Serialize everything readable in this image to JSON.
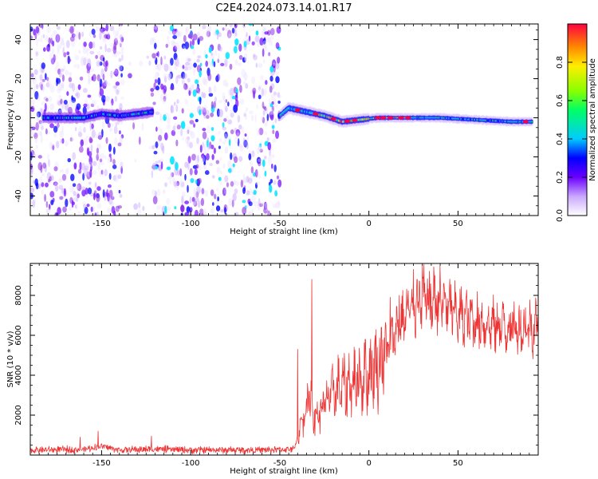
{
  "title": "C2E4.2024.073.14.01.R17",
  "colors": {
    "snr_line": "#ee3333",
    "axis": "#000000",
    "colormap": [
      "#ffffff",
      "#e8dcff",
      "#c9a8ff",
      "#8a2be2",
      "#6a00ff",
      "#0000ff",
      "#00e5ff",
      "#00ff44",
      "#ffff00",
      "#ff8800",
      "#ff0040"
    ]
  },
  "chart_data": [
    {
      "type": "heatmap",
      "xlabel": "Height of straight line (km)",
      "ylabel": "Frequency (Hz)",
      "xlim": [
        -190,
        95
      ],
      "ylim": [
        -50,
        48
      ],
      "xticks": [
        -150,
        -100,
        -50,
        0,
        50
      ],
      "xtick_labels": [
        "-150",
        "-100",
        "-50",
        "0",
        "50"
      ],
      "yticks": [
        -40,
        -20,
        0,
        20,
        40
      ],
      "ytick_labels": [
        "-40",
        "-20",
        "0",
        "20",
        "40"
      ],
      "colorbar": {
        "label": "Normalized spectral amplitude",
        "range": [
          0,
          1
        ],
        "ticks": [
          0.0,
          0.2,
          0.4,
          0.6,
          0.8
        ],
        "tick_labels": [
          "0.0",
          "0.2",
          "0.4",
          "0.6",
          "0.8"
        ]
      },
      "noise_regions": [
        {
          "x_range": [
            -190,
            -50
          ],
          "density": "high"
        },
        {
          "x_range": [
            -138,
            -122
          ],
          "density": "low"
        }
      ],
      "main_band": {
        "description": "strong echo near 0 Hz",
        "points": [
          [
            -183,
            0
          ],
          [
            -170,
            0
          ],
          [
            -160,
            0
          ],
          [
            -150,
            2
          ],
          [
            -140,
            1
          ],
          [
            -130,
            2
          ],
          [
            -122,
            3
          ],
          [
            -50,
            1
          ],
          [
            -45,
            5
          ],
          [
            -35,
            3
          ],
          [
            -25,
            1
          ],
          [
            -15,
            -2
          ],
          [
            -5,
            -1
          ],
          [
            5,
            0
          ],
          [
            20,
            0
          ],
          [
            40,
            0
          ],
          [
            60,
            -1
          ],
          [
            80,
            -2
          ],
          [
            92,
            -2
          ]
        ]
      }
    },
    {
      "type": "line",
      "xlabel": "Height of straight line (km)",
      "ylabel": "SNR (10 * v/v)",
      "xlim": [
        -190,
        95
      ],
      "ylim": [
        0,
        9600
      ],
      "xticks": [
        -150,
        -100,
        -50,
        0,
        50
      ],
      "xtick_labels": [
        "-150",
        "-100",
        "-50",
        "0",
        "50"
      ],
      "yticks": [
        2000,
        4000,
        6000,
        8000
      ],
      "ytick_labels": [
        "2000",
        "4000",
        "6000",
        "8000"
      ],
      "series": [
        {
          "trend": [
            [
              -190,
              250
            ],
            [
              -160,
              280
            ],
            [
              -150,
              450
            ],
            [
              -140,
              250
            ],
            [
              -120,
              300
            ],
            [
              -100,
              250
            ],
            [
              -60,
              250
            ],
            [
              -42,
              300
            ],
            [
              -38,
              1500
            ],
            [
              -35,
              2500
            ],
            [
              -33,
              3000
            ],
            [
              -30,
              1800
            ],
            [
              -25,
              2500
            ],
            [
              -20,
              3200
            ],
            [
              -10,
              3600
            ],
            [
              0,
              4100
            ],
            [
              5,
              4500
            ],
            [
              10,
              5200
            ],
            [
              15,
              6200
            ],
            [
              20,
              6900
            ],
            [
              25,
              7500
            ],
            [
              30,
              7700
            ],
            [
              40,
              7700
            ],
            [
              50,
              7000
            ],
            [
              60,
              6700
            ],
            [
              70,
              6500
            ],
            [
              80,
              6400
            ],
            [
              90,
              6400
            ],
            [
              95,
              6500
            ]
          ],
          "spikes": [
            [
              -162,
              900
            ],
            [
              -152,
              1200
            ],
            [
              -122,
              950
            ],
            [
              -40,
              5300
            ],
            [
              -32,
              8800
            ],
            [
              -2,
              5800
            ],
            [
              7,
              6400
            ],
            [
              12,
              7900
            ],
            [
              17,
              8000
            ],
            [
              27,
              8800
            ],
            [
              30,
              9500
            ],
            [
              37,
              9000
            ],
            [
              42,
              8600
            ]
          ]
        }
      ]
    }
  ]
}
